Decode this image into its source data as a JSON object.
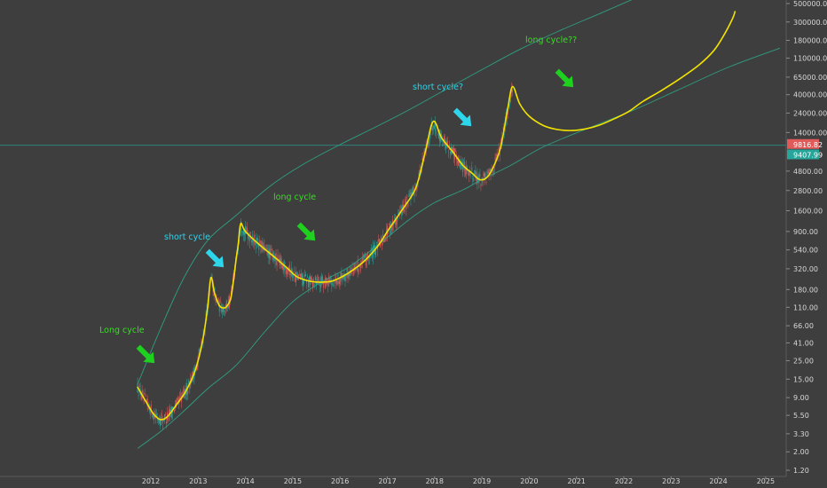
{
  "chart_data": {
    "type": "line",
    "scale": "log",
    "background_color": "#3e3e3e",
    "x_axis": {
      "ticks": [
        "2012",
        "2013",
        "2014",
        "2015",
        "2016",
        "2017",
        "2018",
        "2019",
        "2020",
        "2021",
        "2022",
        "2023",
        "2024",
        "2025"
      ]
    },
    "y_axis": {
      "position": "right",
      "ticks": [
        {
          "value": 500000,
          "label": "500000.00"
        },
        {
          "value": 300000,
          "label": "300000.00"
        },
        {
          "value": 180000,
          "label": "180000.00"
        },
        {
          "value": 110000,
          "label": "110000.00"
        },
        {
          "value": 65000,
          "label": "65000.00"
        },
        {
          "value": 40000,
          "label": "40000.00"
        },
        {
          "value": 24000,
          "label": "24000.00"
        },
        {
          "value": 14000,
          "label": "14000.00"
        },
        {
          "value": 4800,
          "label": "4800.00"
        },
        {
          "value": 2800,
          "label": "2800.00"
        },
        {
          "value": 1600,
          "label": "1600.00"
        },
        {
          "value": 900,
          "label": "900.00"
        },
        {
          "value": 540,
          "label": "540.00"
        },
        {
          "value": 320,
          "label": "320.00"
        },
        {
          "value": 180,
          "label": "180.00"
        },
        {
          "value": 110,
          "label": "110.00"
        },
        {
          "value": 66,
          "label": "66.00"
        },
        {
          "value": 41,
          "label": "41.00"
        },
        {
          "value": 25,
          "label": "25.00"
        },
        {
          "value": 15,
          "label": "15.00"
        },
        {
          "value": 9,
          "label": "9.00"
        },
        {
          "value": 5.5,
          "label": "5.50"
        },
        {
          "value": 3.3,
          "label": "3.30"
        },
        {
          "value": 2,
          "label": "2.00"
        },
        {
          "value": 1.2,
          "label": "1.20"
        }
      ]
    },
    "price_labels": [
      {
        "value": 9816.82,
        "label": "9816.82",
        "color": "#e05a5a"
      },
      {
        "value": 9407.99,
        "label": "9407.99",
        "color": "#26a69a"
      }
    ],
    "horizontal_line": {
      "value": 9816.82,
      "color": "#26a69a"
    },
    "series": [
      {
        "kind": "cycle-curve",
        "color": "#f2e200",
        "points": [
          [
            2011.72,
            12
          ],
          [
            2011.9,
            8
          ],
          [
            2012.05,
            5.8
          ],
          [
            2012.2,
            4.9
          ],
          [
            2012.35,
            5.3
          ],
          [
            2012.55,
            7.5
          ],
          [
            2012.75,
            11
          ],
          [
            2012.95,
            20
          ],
          [
            2013.1,
            45
          ],
          [
            2013.2,
            110
          ],
          [
            2013.27,
            250
          ],
          [
            2013.35,
            160
          ],
          [
            2013.45,
            115
          ],
          [
            2013.55,
            108
          ],
          [
            2013.62,
            116
          ],
          [
            2013.7,
            150
          ],
          [
            2013.8,
            400
          ],
          [
            2013.85,
            650
          ],
          [
            2013.9,
            1120
          ],
          [
            2014.0,
            900
          ],
          [
            2014.3,
            620
          ],
          [
            2014.6,
            450
          ],
          [
            2014.9,
            320
          ],
          [
            2015.1,
            255
          ],
          [
            2015.4,
            225
          ],
          [
            2015.7,
            222
          ],
          [
            2015.9,
            235
          ],
          [
            2016.2,
            290
          ],
          [
            2016.5,
            390
          ],
          [
            2016.8,
            600
          ],
          [
            2017.0,
            900
          ],
          [
            2017.3,
            1600
          ],
          [
            2017.6,
            3000
          ],
          [
            2017.8,
            8000
          ],
          [
            2017.97,
            19000
          ],
          [
            2018.15,
            12000
          ],
          [
            2018.4,
            8000
          ],
          [
            2018.6,
            5600
          ],
          [
            2018.8,
            4500
          ],
          [
            2018.95,
            3800
          ],
          [
            2019.1,
            4000
          ],
          [
            2019.25,
            5500
          ],
          [
            2019.4,
            9500
          ],
          [
            2019.55,
            28000
          ],
          [
            2019.65,
            50000
          ],
          [
            2019.8,
            31000
          ],
          [
            2020.0,
            22000
          ],
          [
            2020.3,
            17000
          ],
          [
            2020.6,
            15200
          ],
          [
            2020.9,
            14800
          ],
          [
            2021.2,
            15500
          ],
          [
            2021.5,
            17300
          ],
          [
            2021.8,
            20500
          ],
          [
            2022.1,
            25000
          ],
          [
            2022.4,
            33000
          ],
          [
            2022.8,
            45000
          ],
          [
            2023.2,
            63000
          ],
          [
            2023.6,
            92000
          ],
          [
            2023.9,
            135000
          ],
          [
            2024.1,
            200000
          ],
          [
            2024.3,
            330000
          ],
          [
            2024.35,
            400000
          ]
        ]
      },
      {
        "kind": "channel-upper",
        "color": "#2ea889",
        "points": [
          [
            2011.72,
            13
          ],
          [
            2012.2,
            60
          ],
          [
            2012.7,
            250
          ],
          [
            2013.2,
            700
          ],
          [
            2013.8,
            1400
          ],
          [
            2014.5,
            3100
          ],
          [
            2015.2,
            5700
          ],
          [
            2016.0,
            10000
          ],
          [
            2016.8,
            16800
          ],
          [
            2017.5,
            27000
          ],
          [
            2018.2,
            45000
          ],
          [
            2019.0,
            80000
          ],
          [
            2019.8,
            140000
          ],
          [
            2020.6,
            230000
          ],
          [
            2021.5,
            380000
          ],
          [
            2022.3,
            600000
          ],
          [
            2022.9,
            840000
          ]
        ]
      },
      {
        "kind": "channel-lower",
        "color": "#2ea889",
        "points": [
          [
            2011.72,
            2.2
          ],
          [
            2012.2,
            3.5
          ],
          [
            2012.7,
            6.2
          ],
          [
            2013.2,
            11.5
          ],
          [
            2013.8,
            22
          ],
          [
            2014.4,
            55
          ],
          [
            2015.0,
            128
          ],
          [
            2015.6,
            220
          ],
          [
            2016.2,
            340
          ],
          [
            2016.8,
            620
          ],
          [
            2017.5,
            1300
          ],
          [
            2018.0,
            2000
          ],
          [
            2018.6,
            2850
          ],
          [
            2019.0,
            3800
          ],
          [
            2019.6,
            5600
          ],
          [
            2020.3,
            9400
          ],
          [
            2021.2,
            15400
          ],
          [
            2022.2,
            26000
          ],
          [
            2023.2,
            47000
          ],
          [
            2024.2,
            85000
          ],
          [
            2025.3,
            145000
          ]
        ]
      }
    ],
    "annotations": [
      {
        "text": "Long cycle",
        "color": "#33e01d"
      },
      {
        "text": "short cycle",
        "color": "#2fd3ec"
      },
      {
        "text": "long cycle",
        "color": "#33e01d"
      },
      {
        "text": "short cycle?",
        "color": "#2fd3ec"
      },
      {
        "text": "long cycle??",
        "color": "#33e01d"
      }
    ],
    "arrows": [
      {
        "color": "#1fd11f",
        "at": [
          2012.1,
          35
        ]
      },
      {
        "color": "#2ed6ec",
        "at": [
          2013.45,
          380
        ]
      },
      {
        "color": "#1fd11f",
        "at": [
          2015.38,
          720
        ]
      },
      {
        "color": "#2ed6ec",
        "at": [
          2018.68,
          23000
        ]
      },
      {
        "color": "#1fd11f",
        "at": [
          2020.95,
          45000
        ]
      }
    ]
  }
}
